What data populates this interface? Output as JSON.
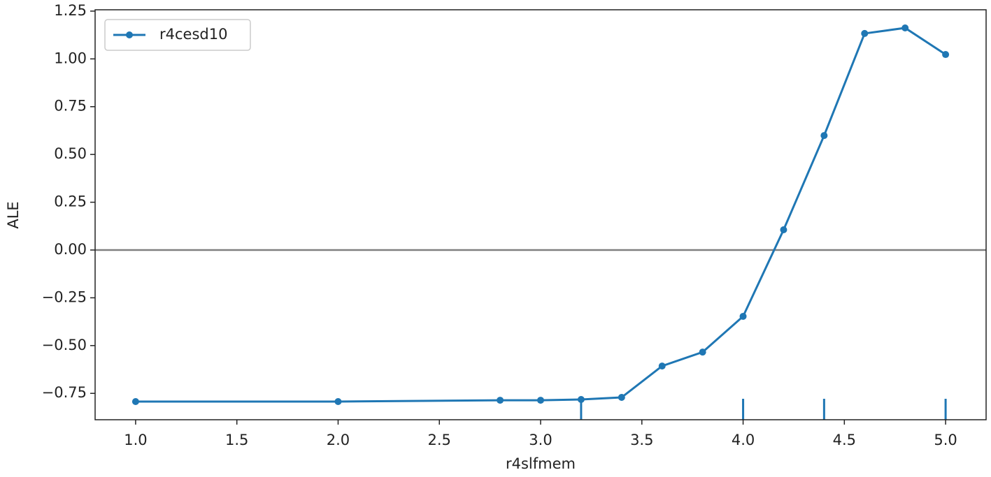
{
  "chart_data": {
    "type": "line",
    "x_label": "r4slfmem",
    "y_label": "ALE",
    "x": [
      1.0,
      2.0,
      2.8,
      3.0,
      3.2,
      3.4,
      3.6,
      3.8,
      4.0,
      4.2,
      4.4,
      4.6,
      4.8,
      5.0
    ],
    "series": [
      {
        "name": "r4cesd10",
        "color": "#1f77b4",
        "values": [
          -0.793,
          -0.793,
          -0.786,
          -0.786,
          -0.782,
          -0.771,
          -0.607,
          -0.534,
          -0.347,
          0.106,
          0.599,
          1.133,
          1.162,
          1.023
        ]
      }
    ],
    "rug": [
      3.2,
      4.0,
      4.4,
      5.0
    ],
    "reference_line": 0,
    "xlim": [
      0.8,
      5.2
    ],
    "ylim": [
      -0.888,
      1.257
    ],
    "xticks": [
      {
        "value": 1.0,
        "label": "1.0"
      },
      {
        "value": 1.5,
        "label": "1.5"
      },
      {
        "value": 2.0,
        "label": "2.0"
      },
      {
        "value": 2.5,
        "label": "2.5"
      },
      {
        "value": 3.0,
        "label": "3.0"
      },
      {
        "value": 3.5,
        "label": "3.5"
      },
      {
        "value": 4.0,
        "label": "4.0"
      },
      {
        "value": 4.5,
        "label": "4.5"
      },
      {
        "value": 5.0,
        "label": "5.0"
      }
    ],
    "yticks": [
      {
        "value": -0.75,
        "label": "−0.75"
      },
      {
        "value": -0.5,
        "label": "−0.50"
      },
      {
        "value": -0.25,
        "label": "−0.25"
      },
      {
        "value": 0,
        "label": "0.00"
      },
      {
        "value": 0.25,
        "label": "0.25"
      },
      {
        "value": 0.5,
        "label": "0.50"
      },
      {
        "value": 0.75,
        "label": "0.75"
      },
      {
        "value": 1.0,
        "label": "1.00"
      },
      {
        "value": 1.25,
        "label": "1.25"
      }
    ],
    "legend": "upper left",
    "grid": false
  }
}
